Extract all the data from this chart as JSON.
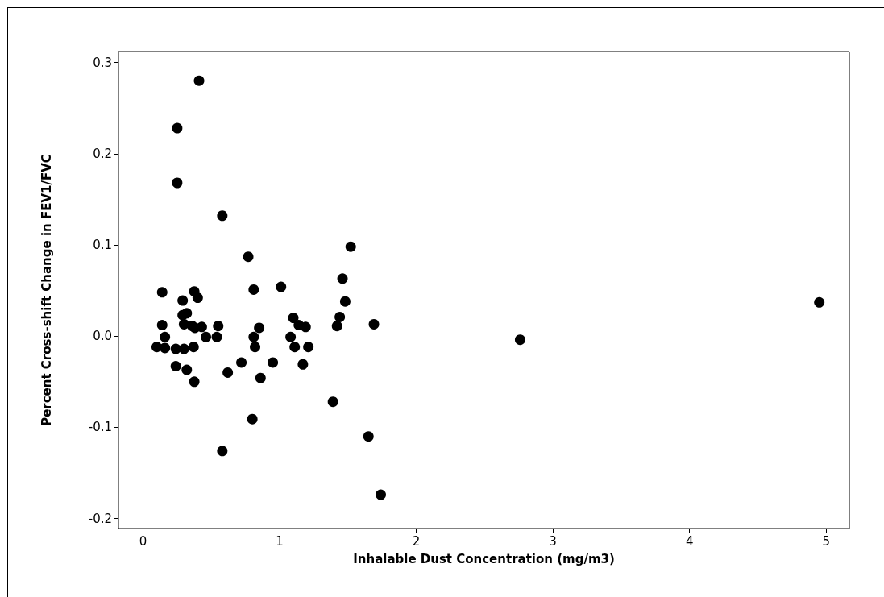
{
  "chart_data": {
    "type": "scatter",
    "xlabel": "Inhalable Dust Concentration (mg/m3)",
    "ylabel": "Percent Cross-shift Change in FEV1/FVC",
    "x": [
      0.41,
      0.25,
      0.25,
      0.58,
      0.77,
      1.52,
      0.14,
      0.375,
      0.4,
      0.29,
      0.81,
      1.01,
      0.29,
      0.32,
      0.3,
      0.36,
      0.38,
      0.43,
      0.55,
      0.14,
      0.16,
      0.1,
      0.16,
      0.24,
      0.3,
      0.37,
      0.46,
      0.54,
      0.85,
      0.81,
      0.82,
      0.24,
      0.32,
      0.375,
      0.62,
      0.72,
      0.95,
      0.86,
      0.8,
      0.58,
      1.1,
      1.14,
      1.19,
      1.08,
      1.11,
      1.21,
      1.17,
      1.46,
      1.48,
      1.44,
      1.42,
      1.69,
      1.39,
      1.65,
      1.74,
      2.76,
      4.95
    ],
    "values": [
      0.28,
      0.228,
      0.168,
      0.132,
      0.087,
      0.098,
      0.048,
      0.049,
      0.042,
      0.039,
      0.051,
      0.054,
      0.023,
      0.025,
      0.013,
      0.011,
      0.009,
      0.01,
      0.011,
      0.012,
      -0.001,
      -0.012,
      -0.013,
      -0.014,
      -0.014,
      -0.012,
      -0.001,
      -0.001,
      0.009,
      -0.001,
      -0.012,
      -0.033,
      -0.037,
      -0.05,
      -0.04,
      -0.029,
      -0.029,
      -0.046,
      -0.091,
      -0.126,
      0.02,
      0.012,
      0.01,
      -0.001,
      -0.012,
      -0.012,
      -0.031,
      0.063,
      0.038,
      0.021,
      0.011,
      0.013,
      -0.072,
      -0.11,
      -0.174,
      -0.004,
      0.037
    ],
    "color": "#000000",
    "marker": "circle",
    "grid": false,
    "xlim": [
      -0.18,
      5.17
    ],
    "xticks": [
      0,
      1,
      2,
      3,
      4,
      5
    ],
    "ylim": [
      -0.211,
      0.312
    ],
    "yticks": [
      -0.2,
      -0.1,
      {
        "value": 0,
        "label": "0.0"
      },
      0.1,
      0.2,
      0.3
    ]
  }
}
